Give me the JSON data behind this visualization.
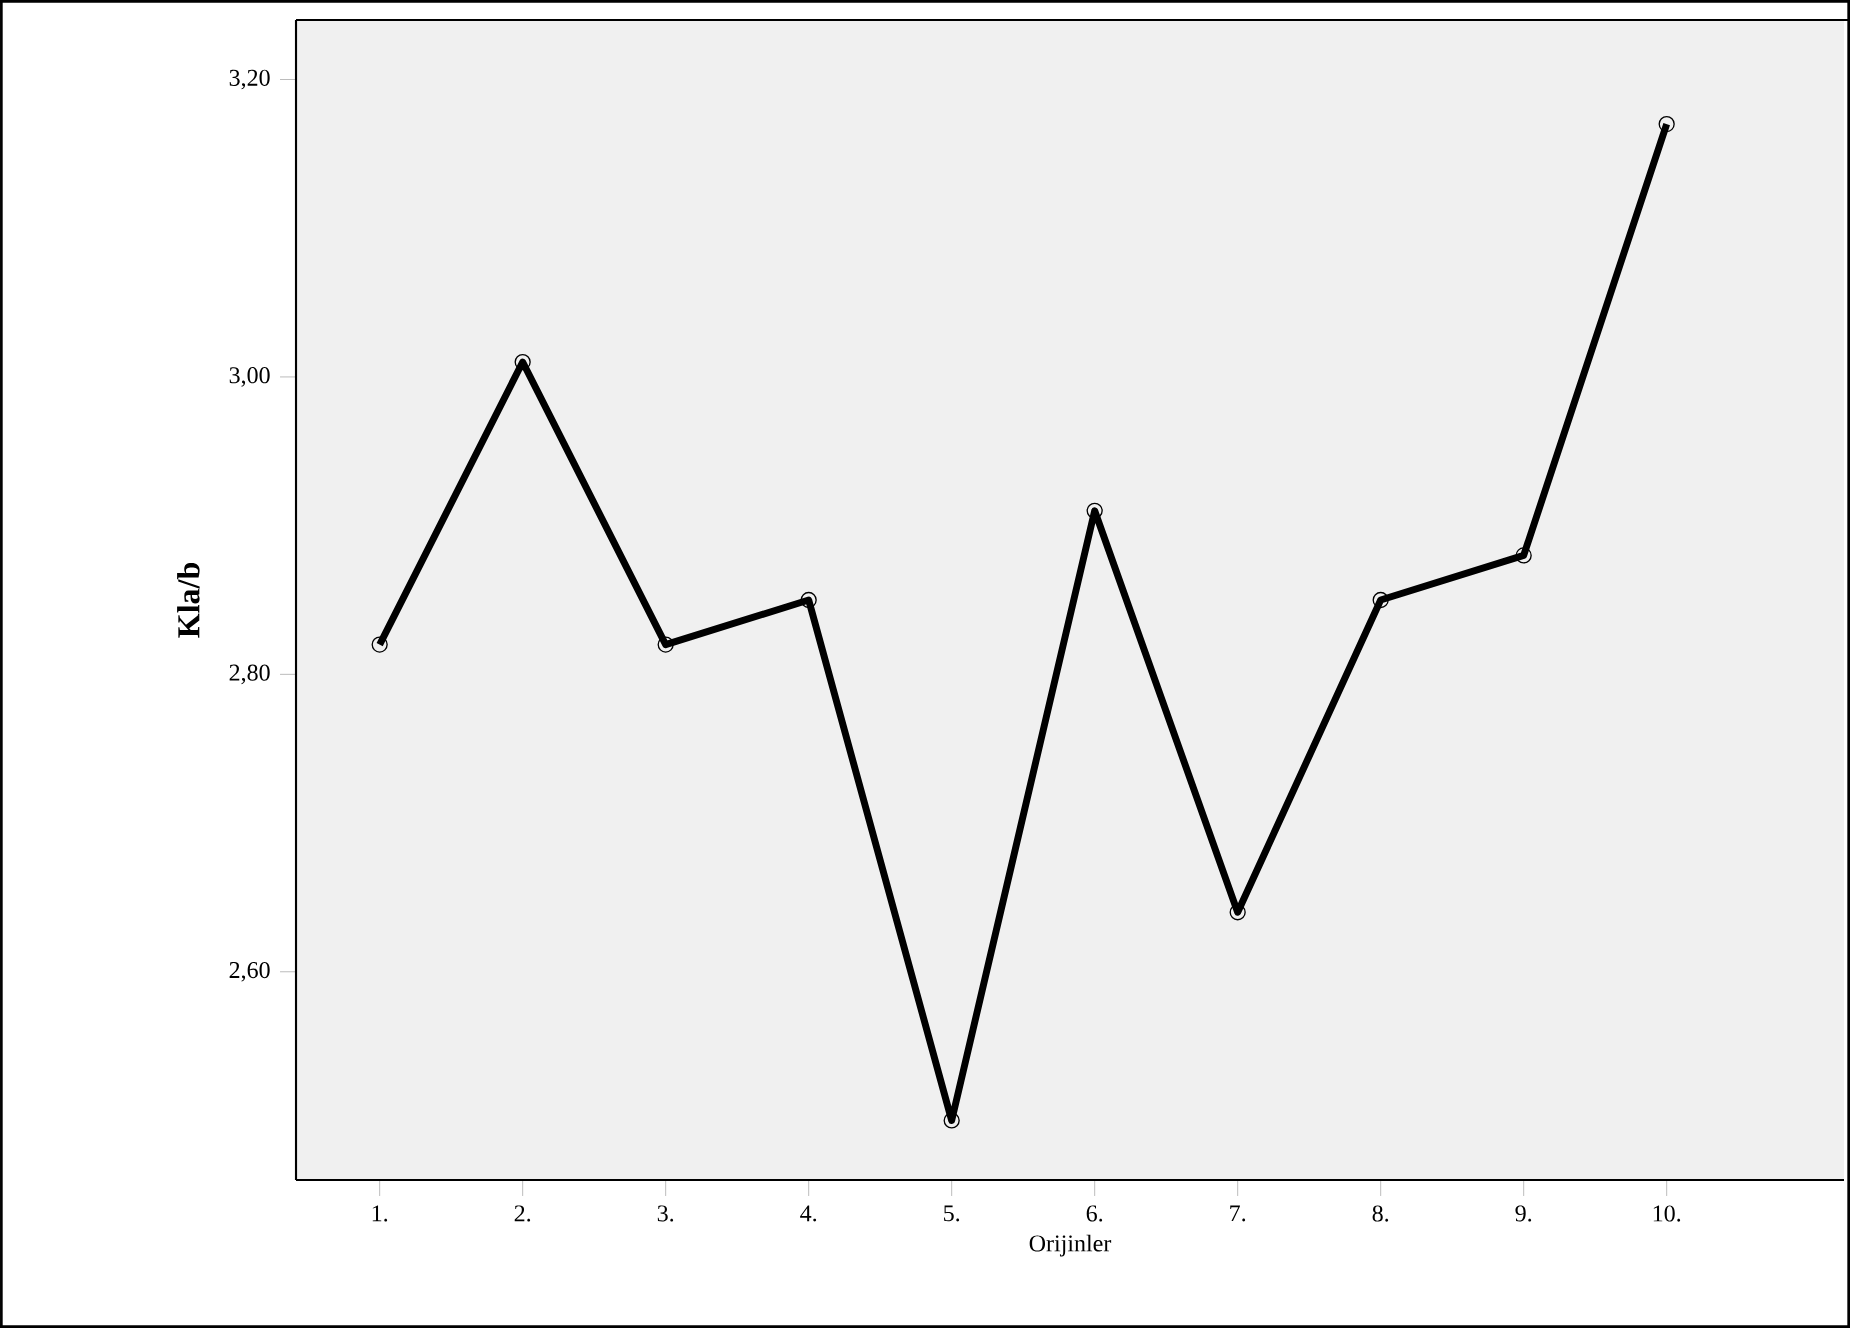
{
  "chart_data": {
    "type": "line",
    "xlabel": "Orijinler",
    "ylabel": "Kla/b",
    "categories": [
      "1.",
      "2.",
      "3.",
      "4.",
      "5.",
      "6.",
      "7.",
      "8.",
      "9.",
      "10."
    ],
    "series": [
      {
        "color": "#000000",
        "values": [
          2.82,
          3.01,
          2.82,
          2.85,
          2.5,
          2.91,
          2.64,
          2.85,
          2.88,
          3.17
        ]
      }
    ],
    "ylim": [
      2.46,
      3.24
    ],
    "yticks": [
      {
        "value": 2.6,
        "label": "2,60"
      },
      {
        "value": 2.8,
        "label": "2,80"
      },
      {
        "value": 3.0,
        "label": "3,00"
      },
      {
        "value": 3.2,
        "label": "3,20"
      }
    ],
    "marker": "circle",
    "line_style": "solid"
  }
}
